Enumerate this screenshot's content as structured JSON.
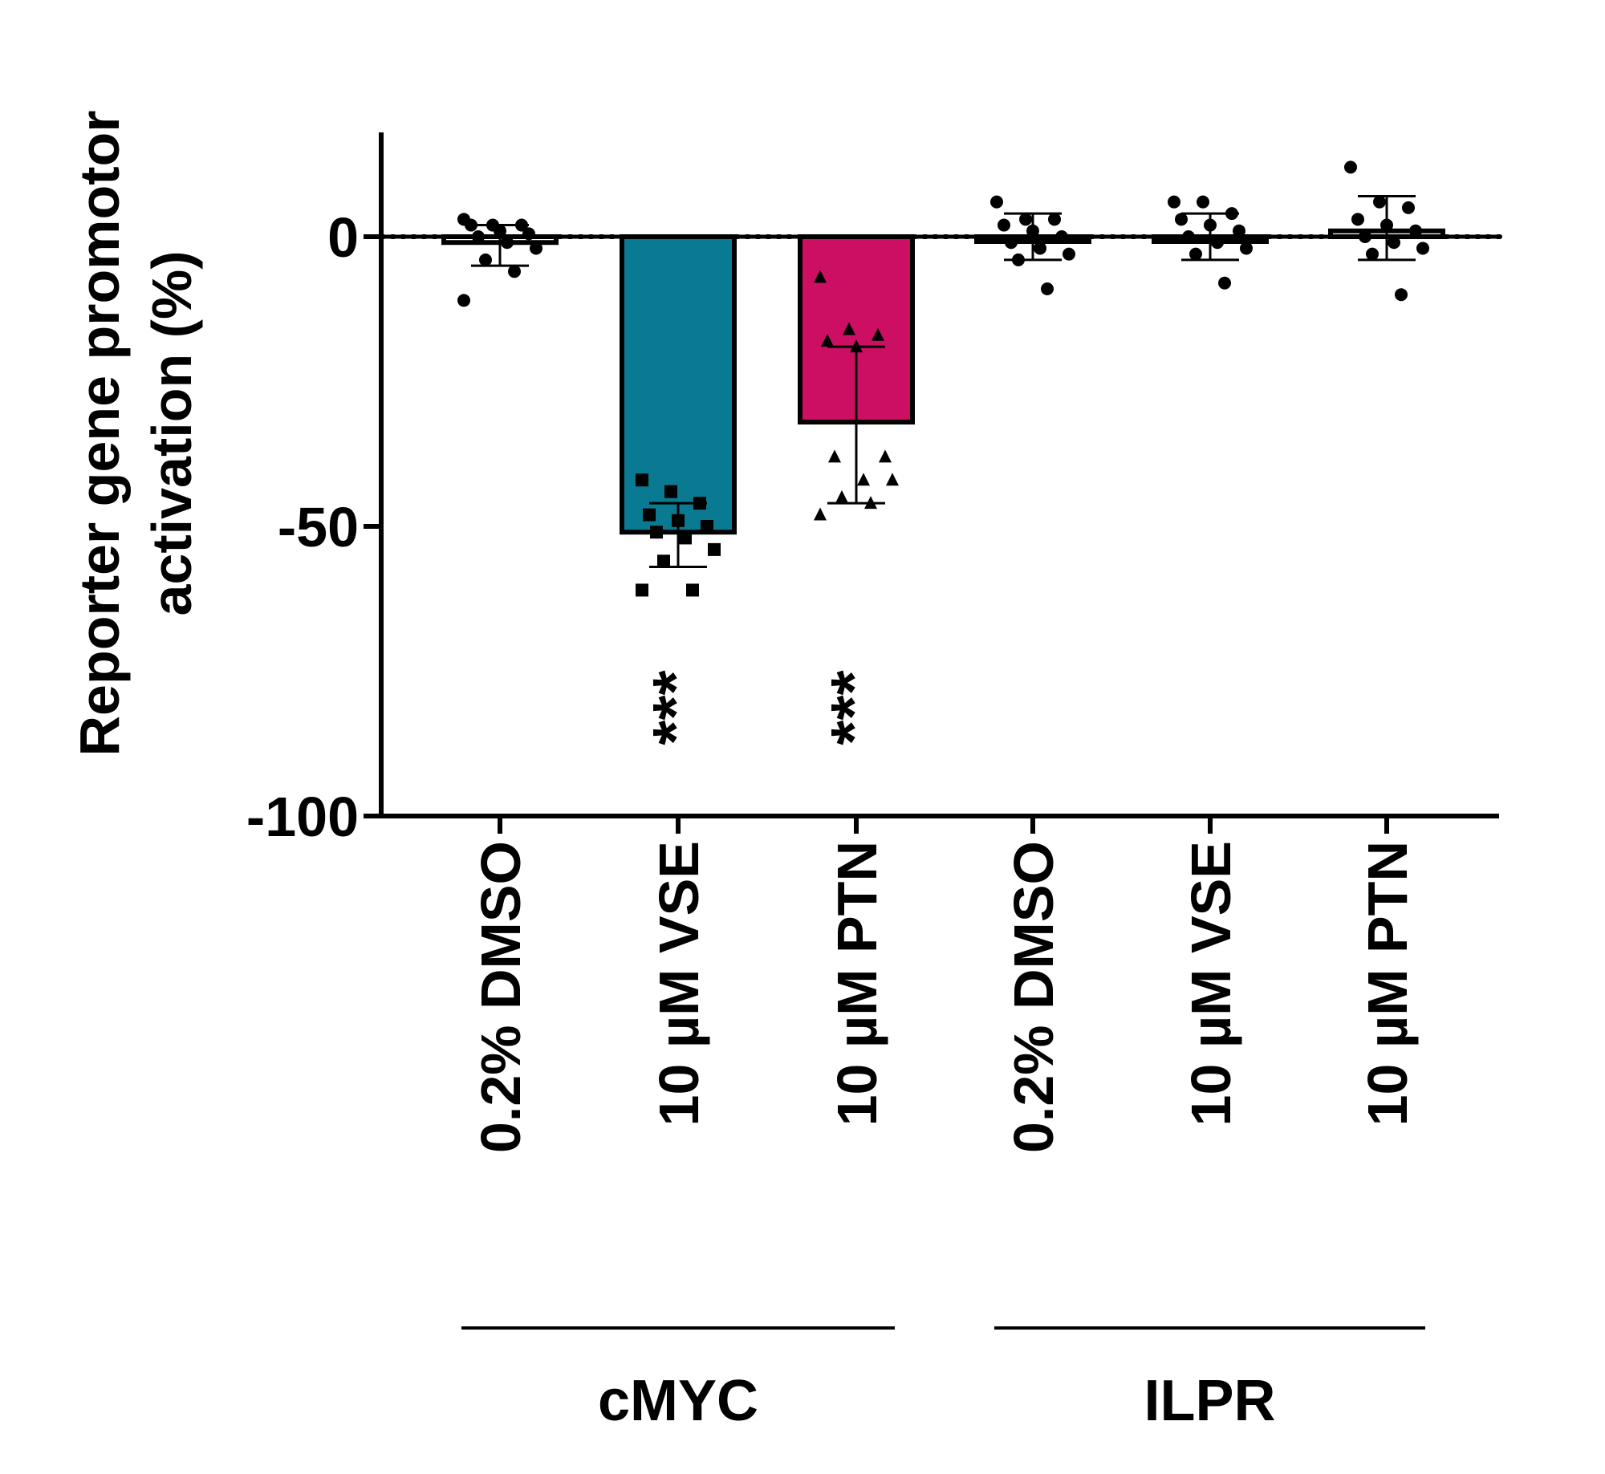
{
  "chart_data": {
    "type": "bar",
    "ylabel_lines": [
      "Reporter gene promotor",
      "activation (%)"
    ],
    "xlabel": "",
    "ylim": [
      -100,
      18
    ],
    "yticks": [
      {
        "value": 0,
        "label": "0"
      },
      {
        "value": -50,
        "label": "-50"
      },
      {
        "value": -100,
        "label": "-100"
      }
    ],
    "reference_line": {
      "value": 0,
      "style": "dotted"
    },
    "categories": [
      "0.2% DMSO",
      "10 µM VSE",
      "10 µM PTN",
      "0.2% DMSO",
      "10 µM VSE",
      "10 µM PTN"
    ],
    "groups": [
      {
        "label": "cMYC",
        "categories": [
          0,
          1,
          2
        ]
      },
      {
        "label": "ILPR",
        "categories": [
          3,
          4,
          5
        ]
      }
    ],
    "bars": [
      {
        "category": "0.2% DMSO",
        "group": "cMYC",
        "mean": -1,
        "sd_low": -5,
        "sd_high": 2,
        "color": "#ffffff",
        "marker": "circle",
        "significance": "",
        "points": [
          3,
          2,
          2,
          2,
          1,
          0.5,
          0,
          -1,
          -2,
          -4,
          -6,
          -11
        ]
      },
      {
        "category": "10 µM VSE",
        "group": "cMYC",
        "mean": -51,
        "sd_low": -57,
        "sd_high": -46,
        "color": "#0a7a93",
        "marker": "square",
        "significance": "***",
        "points": [
          -42,
          -44,
          -46,
          -48,
          -49,
          -50,
          -51,
          -52,
          -54,
          -56,
          -61,
          -61
        ]
      },
      {
        "category": "10 µM PTN",
        "group": "cMYC",
        "mean": -32,
        "sd_low": -46,
        "sd_high": -19,
        "color": "#cc0f63",
        "marker": "triangle",
        "significance": "***",
        "points": [
          -7,
          -16,
          -17,
          -18,
          -19,
          -38,
          -38,
          -42,
          -42,
          -45,
          -46,
          -48
        ]
      },
      {
        "category": "0.2% DMSO",
        "group": "ILPR",
        "mean": 0,
        "sd_low": -4,
        "sd_high": 4,
        "color": "#ffffff",
        "marker": "circle",
        "significance": "",
        "points": [
          6,
          3,
          3,
          2,
          1,
          0,
          -1,
          -2,
          -3,
          -4,
          -9
        ]
      },
      {
        "category": "10 µM VSE",
        "group": "ILPR",
        "mean": 0,
        "sd_low": -4,
        "sd_high": 4,
        "color": "#ffffff",
        "marker": "circle",
        "significance": "",
        "points": [
          6,
          6,
          4,
          3,
          2,
          1,
          0,
          -1,
          -2,
          -3,
          -8
        ]
      },
      {
        "category": "10 µM PTN",
        "group": "ILPR",
        "mean": 1,
        "sd_low": -4,
        "sd_high": 7,
        "color": "#ffffff",
        "marker": "circle",
        "significance": "",
        "points": [
          12,
          6,
          5,
          3,
          2,
          1,
          0,
          -1,
          -2,
          -3,
          -10
        ]
      }
    ]
  }
}
